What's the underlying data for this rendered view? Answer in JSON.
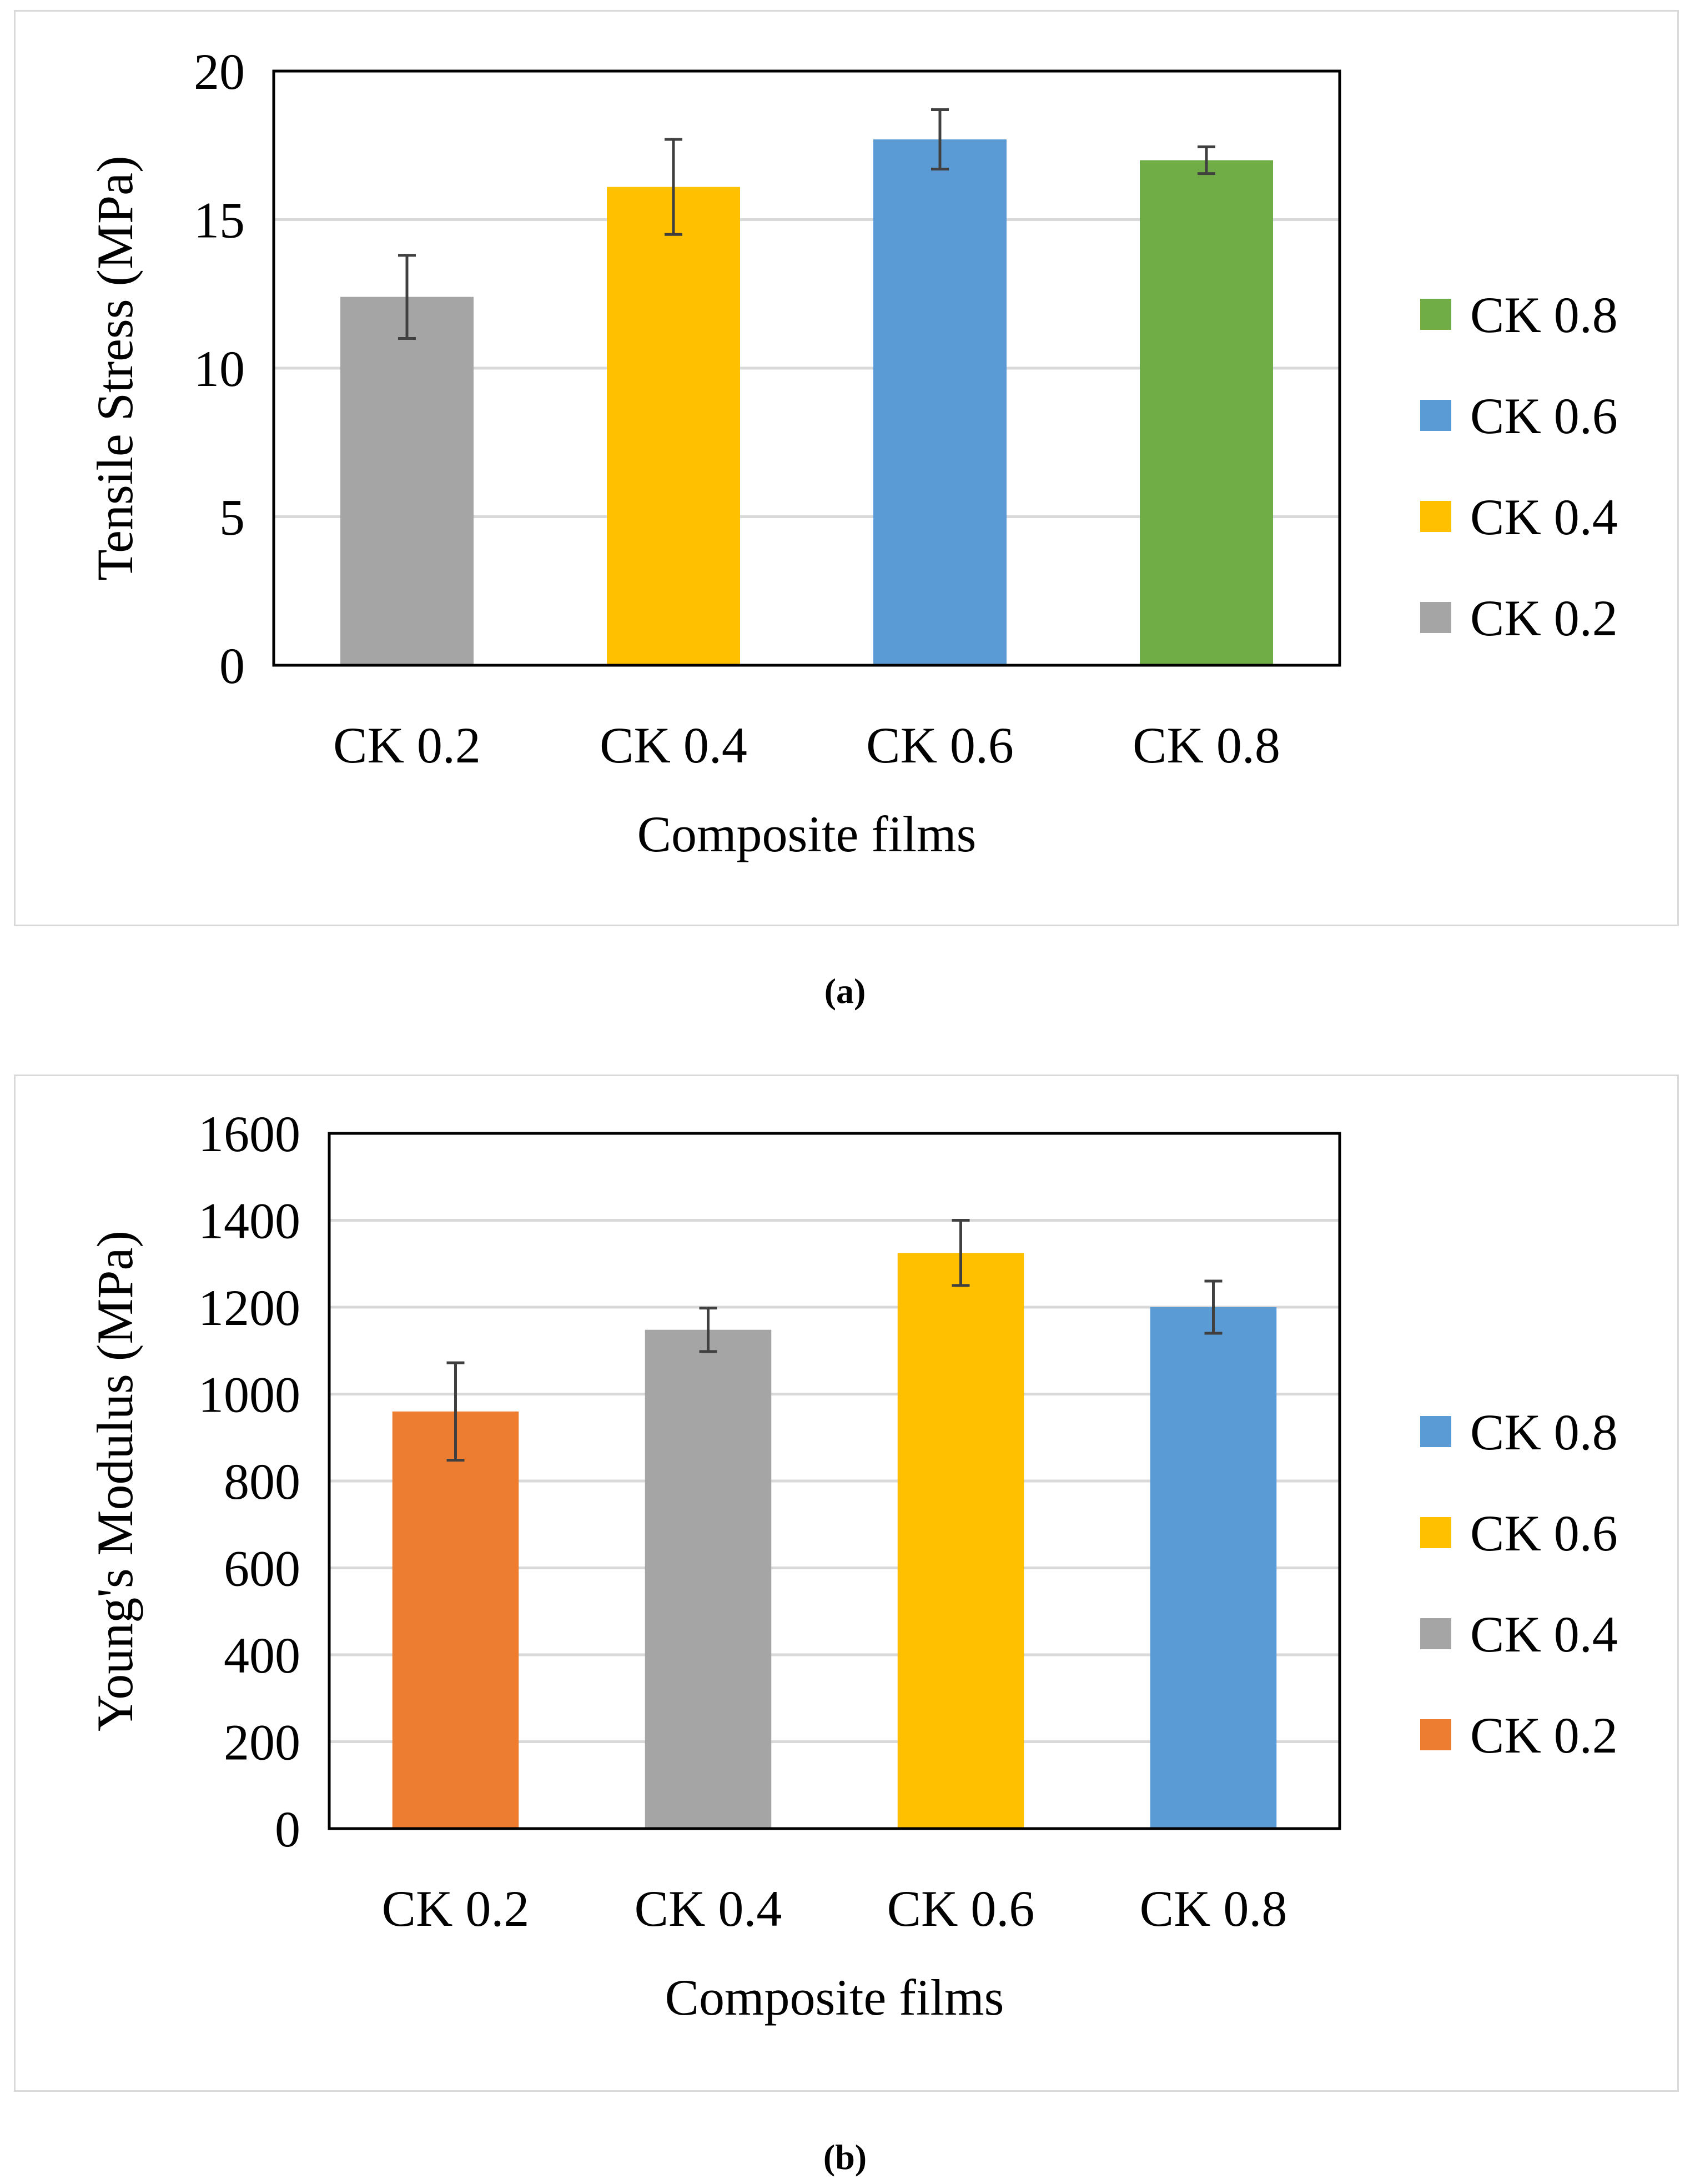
{
  "chart_data": [
    {
      "type": "bar",
      "panel_label": "(a)",
      "categories": [
        "CK 0.2",
        "CK 0.4",
        "CK 0.6",
        "CK 0.8"
      ],
      "values": [
        12.4,
        16.1,
        17.7,
        17.0
      ],
      "error": [
        1.4,
        1.6,
        1.0,
        0.45
      ],
      "colors": [
        "#a5a5a5",
        "#ffc000",
        "#5b9bd5",
        "#70ad47"
      ],
      "xlabel": "Composite films",
      "ylabel": "Tensile Stress (MPa)",
      "ylim": [
        0,
        20
      ],
      "yticks": [
        0,
        5,
        10,
        15,
        20
      ],
      "grid": true,
      "legend": {
        "placement": "right",
        "entries": [
          {
            "label": "CK 0.8",
            "color": "#70ad47"
          },
          {
            "label": "CK 0.6",
            "color": "#5b9bd5"
          },
          {
            "label": "CK 0.4",
            "color": "#ffc000"
          },
          {
            "label": "CK 0.2",
            "color": "#a5a5a5"
          }
        ]
      }
    },
    {
      "type": "bar",
      "panel_label": "(b)",
      "categories": [
        "CK 0.2",
        "CK 0.4",
        "CK 0.6",
        "CK 0.8"
      ],
      "values": [
        960,
        1148,
        1325,
        1200
      ],
      "error": [
        112,
        50,
        75,
        60
      ],
      "colors": [
        "#ed7d31",
        "#a5a5a5",
        "#ffc000",
        "#5b9bd5"
      ],
      "xlabel": "Composite films",
      "ylabel": "Young's Modulus (MPa)",
      "ylim": [
        0,
        1600
      ],
      "yticks": [
        0,
        200,
        400,
        600,
        800,
        1000,
        1200,
        1400,
        1600
      ],
      "grid": true,
      "legend": {
        "placement": "right",
        "entries": [
          {
            "label": "CK 0.8",
            "color": "#5b9bd5"
          },
          {
            "label": "CK 0.6",
            "color": "#ffc000"
          },
          {
            "label": "CK 0.4",
            "color": "#a5a5a5"
          },
          {
            "label": "CK 0.2",
            "color": "#ed7d31"
          }
        ]
      }
    }
  ]
}
